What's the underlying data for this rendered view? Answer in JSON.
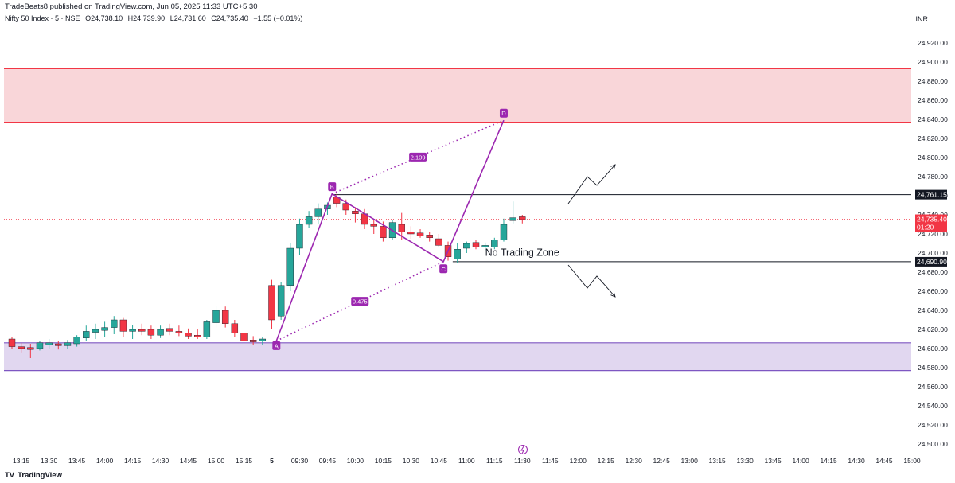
{
  "header": {
    "publisher": "TradeBeats8 published on TradingView.com, Jun 05, 2025 11:33 UTC+5:30",
    "symbol": "Nifty 50 Index · 5 · NSE",
    "open": "O24,738.10",
    "high": "H24,739.90",
    "low": "L24,731.60",
    "close": "C24,735.40",
    "change": "−1.55 (−0.01%)",
    "currency": "INR"
  },
  "footer": {
    "logo_text": "TradingView",
    "logo_mark": "TV"
  },
  "colors": {
    "up": "#26a69a",
    "down": "#f23645",
    "pattern": "#9c27b0",
    "supply_fill": "#f9d6d9",
    "supply_line": "#f23645",
    "demand_fill": "#e1d7f0",
    "demand_line": "#7e57c2",
    "level_line": "#131722",
    "last_price": "#f23645"
  },
  "chart_data": {
    "type": "candlestick",
    "ylim": [
      24490,
      24940
    ],
    "y_ticks": [
      "24,500.00",
      "24,520.00",
      "24,540.00",
      "24,560.00",
      "24,580.00",
      "24,600.00",
      "24,620.00",
      "24,640.00",
      "24,660.00",
      "24,680.00",
      "24,700.00",
      "24,720.00",
      "24,740.00",
      "24,760.00",
      "24,780.00",
      "24,800.00",
      "24,820.00",
      "24,840.00",
      "24,860.00",
      "24,880.00",
      "24,900.00",
      "24,920.00"
    ],
    "x_ticks": [
      {
        "i": 1,
        "label": "13:15"
      },
      {
        "i": 4,
        "label": "13:30"
      },
      {
        "i": 7,
        "label": "13:45"
      },
      {
        "i": 10,
        "label": "14:00"
      },
      {
        "i": 13,
        "label": "14:15"
      },
      {
        "i": 16,
        "label": "14:30"
      },
      {
        "i": 19,
        "label": "14:45"
      },
      {
        "i": 22,
        "label": "15:00"
      },
      {
        "i": 25,
        "label": "15:15"
      },
      {
        "i": 28,
        "label": "5"
      },
      {
        "i": 31,
        "label": "09:30"
      },
      {
        "i": 34,
        "label": "09:45"
      },
      {
        "i": 37,
        "label": "10:00"
      },
      {
        "i": 40,
        "label": "10:15"
      },
      {
        "i": 43,
        "label": "10:30"
      },
      {
        "i": 46,
        "label": "10:45"
      },
      {
        "i": 49,
        "label": "11:00"
      },
      {
        "i": 52,
        "label": "11:15"
      },
      {
        "i": 55,
        "label": "11:30"
      },
      {
        "i": 58,
        "label": "11:45"
      },
      {
        "i": 61,
        "label": "12:00"
      },
      {
        "i": 64,
        "label": "12:15"
      },
      {
        "i": 67,
        "label": "12:30"
      },
      {
        "i": 70,
        "label": "12:45"
      },
      {
        "i": 73,
        "label": "13:00"
      },
      {
        "i": 76,
        "label": "13:15"
      },
      {
        "i": 79,
        "label": "13:30"
      },
      {
        "i": 82,
        "label": "13:45"
      },
      {
        "i": 85,
        "label": "14:00"
      },
      {
        "i": 88,
        "label": "14:15"
      },
      {
        "i": 91,
        "label": "14:30"
      },
      {
        "i": 94,
        "label": "14:45"
      },
      {
        "i": 97,
        "label": "15:00"
      }
    ],
    "candles": [
      [
        24610,
        24612,
        24600,
        24602
      ],
      [
        24602,
        24606,
        24596,
        24600
      ],
      [
        24601,
        24605,
        24590,
        24599
      ],
      [
        24600,
        24608,
        24598,
        24606
      ],
      [
        24604,
        24610,
        24600,
        24606
      ],
      [
        24605,
        24608,
        24599,
        24603
      ],
      [
        24603,
        24609,
        24600,
        24606
      ],
      [
        24605,
        24614,
        24602,
        24612
      ],
      [
        24611,
        24624,
        24608,
        24618
      ],
      [
        24617,
        24626,
        24610,
        24620
      ],
      [
        24619,
        24628,
        24612,
        24622
      ],
      [
        24622,
        24634,
        24615,
        24630
      ],
      [
        24630,
        24632,
        24612,
        24618
      ],
      [
        24618,
        24625,
        24610,
        24620
      ],
      [
        24620,
        24626,
        24614,
        24618
      ],
      [
        24620,
        24624,
        24610,
        24614
      ],
      [
        24614,
        24624,
        24611,
        24620
      ],
      [
        24621,
        24626,
        24614,
        24618
      ],
      [
        24618,
        24624,
        24613,
        24616
      ],
      [
        24616,
        24621,
        24610,
        24613
      ],
      [
        24614,
        24620,
        24610,
        24612
      ],
      [
        24612,
        24630,
        24610,
        24628
      ],
      [
        24627,
        24645,
        24622,
        24640
      ],
      [
        24640,
        24644,
        24622,
        24626
      ],
      [
        24626,
        24630,
        24612,
        24616
      ],
      [
        24616,
        24622,
        24606,
        24608
      ],
      [
        24609,
        24613,
        24604,
        24607
      ],
      [
        24608,
        24612,
        24604,
        24610
      ],
      [
        24666,
        24672,
        24620,
        24630
      ],
      [
        24634,
        24670,
        24630,
        24666
      ],
      [
        24666,
        24710,
        24660,
        24705
      ],
      [
        24705,
        24736,
        24698,
        24730
      ],
      [
        24730,
        24744,
        24726,
        24738
      ],
      [
        24738,
        24752,
        24730,
        24746
      ],
      [
        24746,
        24753,
        24740,
        24750
      ],
      [
        24759,
        24762,
        24748,
        24752
      ],
      [
        24752,
        24756,
        24740,
        24745
      ],
      [
        24744,
        24748,
        24732,
        24741
      ],
      [
        24741,
        24746,
        24725,
        24730
      ],
      [
        24730,
        24735,
        24720,
        24728
      ],
      [
        24728,
        24733,
        24712,
        24716
      ],
      [
        24716,
        24735,
        24714,
        24732
      ],
      [
        24730,
        24742,
        24714,
        24722
      ],
      [
        24722,
        24728,
        24715,
        24720
      ],
      [
        24721,
        24725,
        24716,
        24718
      ],
      [
        24719,
        24722,
        24712,
        24716
      ],
      [
        24715,
        24720,
        24706,
        24708
      ],
      [
        24708,
        24712,
        24692,
        24696
      ],
      [
        24694,
        24710,
        24690,
        24704
      ],
      [
        24705,
        24712,
        24700,
        24710
      ],
      [
        24711,
        24714,
        24704,
        24706
      ],
      [
        24706,
        24711,
        24703,
        24708
      ],
      [
        24706,
        24716,
        24704,
        24714
      ],
      [
        24714,
        24736,
        24712,
        24730
      ],
      [
        24734,
        24754,
        24731,
        24737
      ],
      [
        24738,
        24740,
        24731,
        24735
      ]
    ],
    "last_price": 24735.4,
    "last_price_label": "24,735.40",
    "countdown": "01:20",
    "levels": [
      {
        "name": "resistance",
        "value": 24761.15,
        "label": "24,761.15"
      },
      {
        "name": "support",
        "value": 24690.9,
        "label": "24,690.90"
      }
    ],
    "zones": [
      {
        "name": "supply-zone",
        "from": 24837,
        "to": 24893
      },
      {
        "name": "demand-zone",
        "from": 24577,
        "to": 24606
      }
    ],
    "pattern": {
      "points": [
        {
          "label": "A",
          "i": 28.5,
          "y": 24608
        },
        {
          "label": "B",
          "i": 34.5,
          "y": 24762
        },
        {
          "label": "C",
          "i": 46.5,
          "y": 24691
        },
        {
          "label": "D",
          "i": 53.0,
          "y": 24839
        }
      ],
      "ratios": [
        {
          "label": "2.109"
        },
        {
          "label": "0.475"
        }
      ]
    },
    "annotation": "No Trading Zone"
  }
}
